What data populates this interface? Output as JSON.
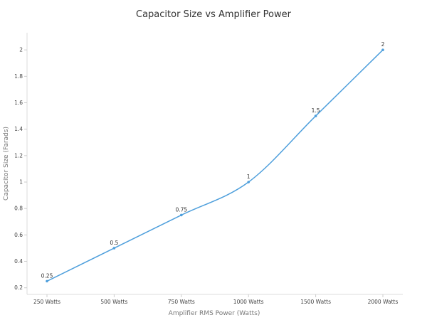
{
  "chart_data": {
    "type": "line",
    "title": "Capacitor Size vs Amplifier Power",
    "xlabel": "Amplifier RMS Power (Watts)",
    "ylabel": "Capacitor Size (Farads)",
    "categories": [
      "250 Watts",
      "500 Watts",
      "750 Watts",
      "1000 Watts",
      "1500 Watts",
      "2000 Watts"
    ],
    "series": [
      {
        "values": [
          0.25,
          0.5,
          0.75,
          1,
          1.5,
          2
        ],
        "color": "#4e9fdc"
      }
    ],
    "data_labels": [
      "0.25",
      "0.5",
      "0.75",
      "1",
      "1.5",
      "2"
    ],
    "yticks": [
      0.2,
      0.4,
      0.6,
      0.8,
      1,
      1.2,
      1.4,
      1.6,
      1.8,
      2
    ],
    "ytick_labels": [
      "0.2",
      "0.4",
      "0.6",
      "0.8",
      "1",
      "1.2",
      "1.4",
      "1.6",
      "1.8",
      "2"
    ],
    "ylim": [
      0.15,
      2.13
    ],
    "grid": false,
    "legend": "none"
  }
}
